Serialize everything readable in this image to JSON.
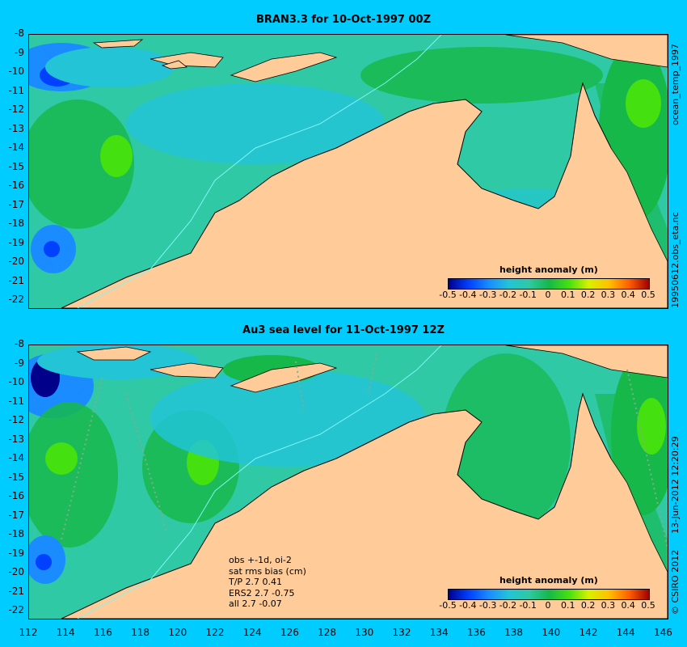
{
  "top_panel": {
    "title": "BRAN3.3 for 10-Oct-1997 00Z",
    "legend_title": "height anomaly (m)",
    "side_labels": [
      "ocean_temp_1997",
      "19950612.obs_eta.nc"
    ]
  },
  "bottom_panel": {
    "title": "Au3 sea level  for 11-Oct-1997 12Z",
    "legend_title": "height anomaly (m)",
    "side_labels": [
      "13-Jun-2012 12:20:29",
      "© CSIRO 2012"
    ],
    "stats": [
      "obs +-1d, oi-2",
      "sat rms bias (cm)",
      "T/P  2.7 0.41",
      "ERS2 2.7 -0.75",
      "all 2.7 -0.07"
    ]
  },
  "y_ticks": [
    "-8",
    "-9",
    "-10",
    "-11",
    "-12",
    "-13",
    "-14",
    "-15",
    "-16",
    "-17",
    "-18",
    "-19",
    "-20",
    "-21",
    "-22"
  ],
  "x_ticks": [
    "112",
    "114",
    "116",
    "118",
    "120",
    "122",
    "124",
    "126",
    "128",
    "130",
    "132",
    "134",
    "136",
    "138",
    "140",
    "142",
    "144",
    "146"
  ],
  "colorbar_ticks": [
    "-0.5",
    "-0.4",
    "-0.3",
    "-0.2",
    "-0.1",
    "0",
    "0.1",
    "0.2",
    "0.3",
    "0.4",
    "0.5"
  ],
  "colors": {
    "background": "#00ccff",
    "land": "#ffcc99",
    "ocean_base": "#2fc9a6",
    "colormap": [
      "#00008b",
      "#0040ff",
      "#1a8cff",
      "#22c4d6",
      "#2fc9a6",
      "#16b84a",
      "#44e010",
      "#d8f000",
      "#ffc000",
      "#ff6000",
      "#a00000"
    ]
  }
}
